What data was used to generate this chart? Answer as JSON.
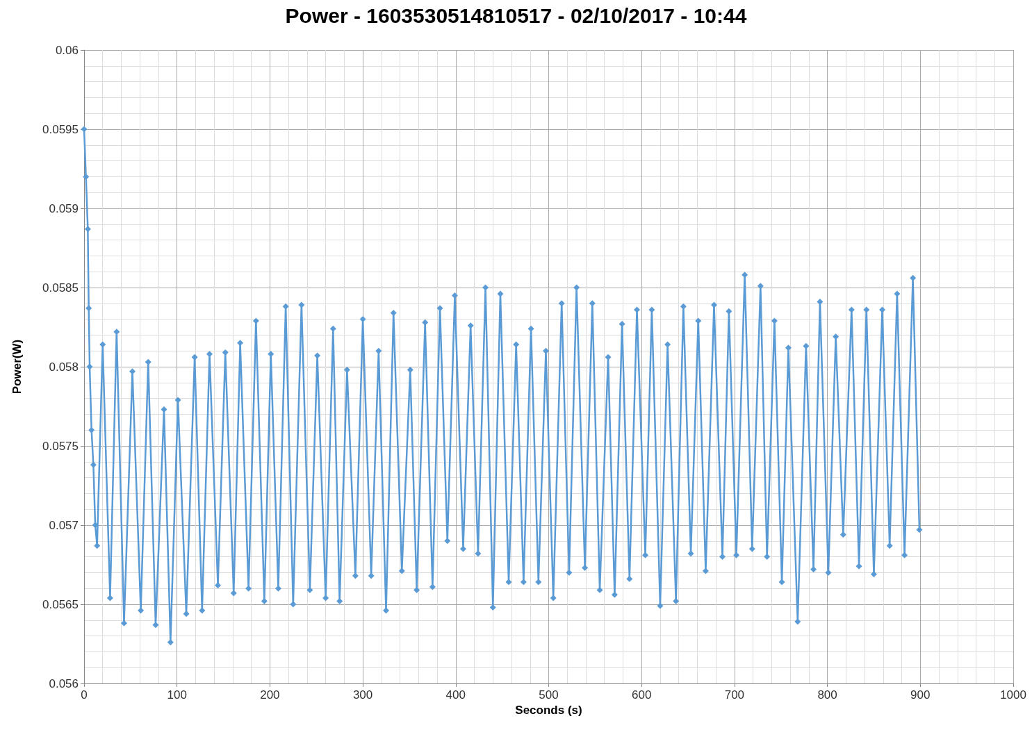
{
  "chart_data": {
    "type": "line",
    "title": "Power - 1603530514810517 - 02/10/2017 - 10:44",
    "xlabel": "Seconds (s)",
    "ylabel": "Power(W)",
    "xlim": [
      0,
      1000
    ],
    "xticks": [
      0,
      100,
      200,
      300,
      400,
      500,
      600,
      700,
      800,
      900,
      1000
    ],
    "ylim": [
      0.056,
      0.06
    ],
    "yticks": [
      0.056,
      0.0565,
      0.057,
      0.0575,
      0.058,
      0.0585,
      0.059,
      0.0595,
      0.06
    ],
    "grid": true,
    "marker": "diamond",
    "line_style": "solid",
    "series": [
      {
        "color": "#5b9bd5",
        "x": [
          0,
          2,
          4,
          5,
          6,
          8,
          10,
          12,
          14,
          20,
          28,
          35,
          43,
          52,
          61,
          69,
          77,
          86,
          93,
          101,
          110,
          119,
          127,
          135,
          144,
          152,
          161,
          168,
          177,
          185,
          194,
          201,
          209,
          217,
          225,
          234,
          243,
          251,
          260,
          268,
          275,
          283,
          292,
          300,
          309,
          317,
          325,
          333,
          342,
          351,
          358,
          367,
          375,
          383,
          391,
          399,
          408,
          416,
          424,
          432,
          440,
          448,
          457,
          465,
          473,
          481,
          489,
          497,
          505,
          514,
          522,
          530,
          539,
          547,
          555,
          564,
          571,
          579,
          587,
          595,
          604,
          611,
          620,
          628,
          637,
          645,
          653,
          661,
          669,
          678,
          687,
          694,
          702,
          711,
          719,
          728,
          735,
          743,
          751,
          758,
          768,
          777,
          785,
          792,
          801,
          809,
          817,
          826,
          834,
          842,
          850,
          859,
          867,
          875,
          883,
          892,
          899
        ],
        "values": [
          0.0595,
          0.0592,
          0.05887,
          0.05837,
          0.058,
          0.0576,
          0.05738,
          0.057,
          0.05687,
          0.05814,
          0.05654,
          0.05822,
          0.05638,
          0.05797,
          0.05646,
          0.05803,
          0.05637,
          0.05773,
          0.05626,
          0.05779,
          0.05644,
          0.05806,
          0.05646,
          0.05808,
          0.05662,
          0.05809,
          0.05657,
          0.05815,
          0.0566,
          0.05829,
          0.05652,
          0.05808,
          0.0566,
          0.05838,
          0.0565,
          0.05839,
          0.05659,
          0.05807,
          0.05654,
          0.05824,
          0.05652,
          0.05798,
          0.05668,
          0.0583,
          0.05668,
          0.0581,
          0.05646,
          0.05834,
          0.05671,
          0.05798,
          0.05659,
          0.05828,
          0.05661,
          0.05837,
          0.0569,
          0.05845,
          0.05685,
          0.05826,
          0.05682,
          0.0585,
          0.05648,
          0.05846,
          0.05664,
          0.05814,
          0.05664,
          0.05824,
          0.05664,
          0.0581,
          0.05654,
          0.0584,
          0.0567,
          0.0585,
          0.05673,
          0.0584,
          0.05659,
          0.05806,
          0.05656,
          0.05827,
          0.05666,
          0.05836,
          0.05681,
          0.05836,
          0.05649,
          0.05814,
          0.05652,
          0.05838,
          0.05682,
          0.05829,
          0.05671,
          0.05839,
          0.0568,
          0.05835,
          0.05681,
          0.05858,
          0.05685,
          0.05851,
          0.0568,
          0.05829,
          0.05664,
          0.05812,
          0.05639,
          0.05813,
          0.05672,
          0.05841,
          0.0567,
          0.05819,
          0.05694,
          0.05836,
          0.05674,
          0.05836,
          0.05669,
          0.05836,
          0.05687,
          0.05846,
          0.05681,
          0.05856,
          0.05697
        ]
      }
    ]
  }
}
